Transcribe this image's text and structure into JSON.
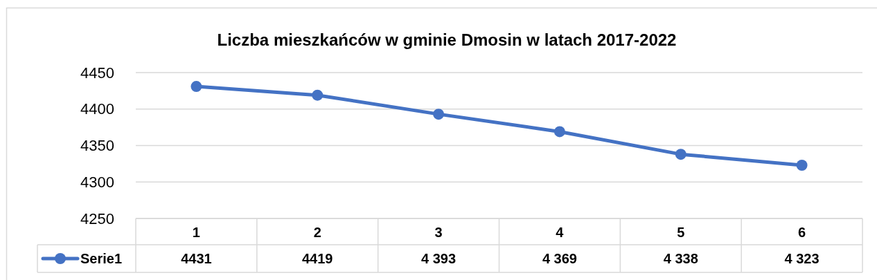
{
  "chart_data": {
    "type": "line",
    "title": "Liczba mieszkańców w gminie Dmosin w latach 2017-2022",
    "categories": [
      "1",
      "2",
      "3",
      "4",
      "5",
      "6"
    ],
    "series": [
      {
        "name": "Serie1",
        "color": "#4472c4",
        "values": [
          4431,
          4419,
          4393,
          4369,
          4338,
          4323
        ],
        "value_labels": [
          "4431",
          "4419",
          "4 393",
          "4 369",
          "4 338",
          "4 323"
        ]
      }
    ],
    "ylim": [
      4250,
      4450
    ],
    "yticks": [
      4250,
      4300,
      4350,
      4400,
      4450
    ],
    "grid": "y",
    "legend": "bottom",
    "marker": "circle",
    "line_style": "solid"
  }
}
